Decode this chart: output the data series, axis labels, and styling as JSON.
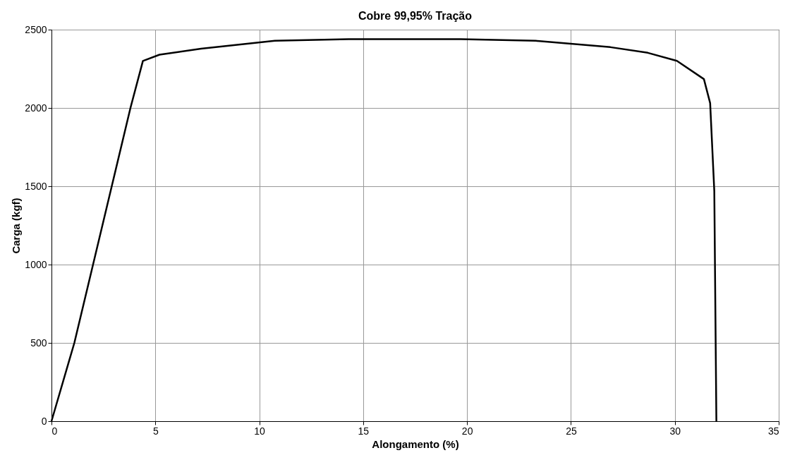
{
  "chart_data": {
    "type": "line",
    "title": "Cobre 99,95% Tração",
    "xlabel": "Alongamento (%)",
    "ylabel": "Carga (kgf)",
    "x": [
      0,
      1.1,
      2.0,
      2.9,
      3.8,
      4.4,
      5.2,
      7.2,
      10.75,
      14.3,
      19.7,
      23.3,
      26.9,
      28.7,
      30.1,
      31.4,
      31.7,
      31.9,
      32.0
    ],
    "series": [
      {
        "color": "#000000",
        "values": [
          0,
          500,
          1000,
          1500,
          2000,
          2300,
          2340,
          2378,
          2429,
          2439,
          2439,
          2429,
          2388,
          2352,
          2301,
          2184,
          2031,
          1469,
          0
        ]
      }
    ],
    "xlim": [
      0,
      35
    ],
    "xticks": [
      0,
      5,
      10,
      15,
      20,
      25,
      30,
      35
    ],
    "ylim": [
      0,
      2500
    ],
    "yticks": [
      0,
      500,
      1000,
      1500,
      2000,
      2500
    ],
    "grid": true,
    "marker": "none",
    "line_style": "solid"
  }
}
